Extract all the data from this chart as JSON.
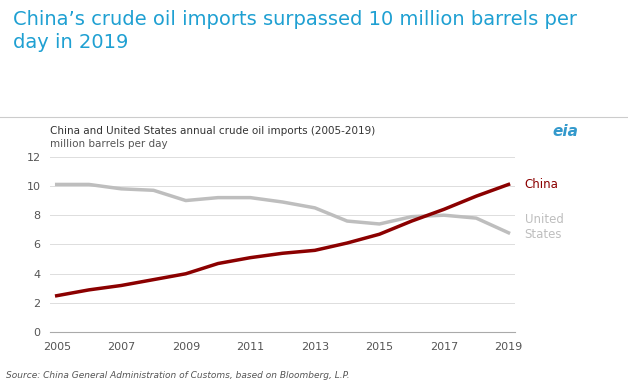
{
  "title": "China’s crude oil imports surpassed 10 million barrels per\nday in 2019",
  "subtitle": "China and United States annual crude oil imports (2005-2019)",
  "ylabel": "million barrels per day",
  "source": "Source: China General Administration of Customs, based on Bloomberg, L.P.",
  "title_color": "#1FA0D2",
  "background_color": "#FFFFFF",
  "years": [
    2005,
    2006,
    2007,
    2008,
    2009,
    2010,
    2011,
    2012,
    2013,
    2014,
    2015,
    2016,
    2017,
    2018,
    2019
  ],
  "china": [
    2.5,
    2.9,
    3.2,
    3.6,
    4.0,
    4.7,
    5.1,
    5.4,
    5.6,
    6.1,
    6.7,
    7.6,
    8.4,
    9.3,
    10.1
  ],
  "us": [
    10.1,
    10.1,
    9.8,
    9.7,
    9.0,
    9.2,
    9.2,
    8.9,
    8.5,
    7.6,
    7.4,
    7.9,
    8.0,
    7.8,
    6.8
  ],
  "china_color": "#8B0000",
  "us_color": "#BEBEBE",
  "ylim": [
    0,
    12
  ],
  "yticks": [
    0,
    2,
    4,
    6,
    8,
    10,
    12
  ],
  "xlim": [
    2005,
    2019
  ],
  "xticks": [
    2005,
    2007,
    2009,
    2011,
    2013,
    2015,
    2017,
    2019
  ],
  "line_width": 2.5,
  "china_label": "China",
  "us_label": "United\nStates",
  "title_fontsize": 14,
  "subtitle_fontsize": 7.5,
  "tick_fontsize": 8,
  "source_fontsize": 6.5,
  "label_fontsize": 8.5,
  "divider_color": "#CCCCCC",
  "grid_color": "#DDDDDD",
  "bottom_spine_color": "#AAAAAA",
  "tick_color": "#555555",
  "source_color": "#555555",
  "subtitle_color": "#333333"
}
